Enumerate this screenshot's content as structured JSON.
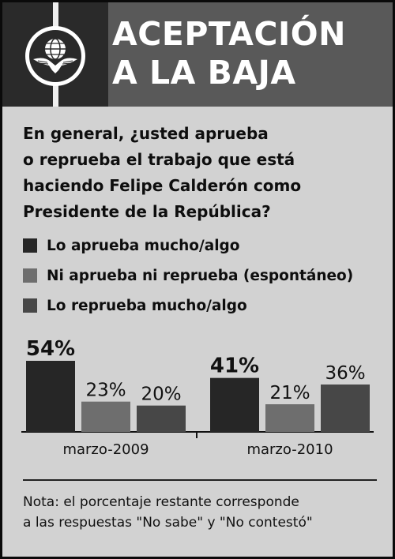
{
  "header": {
    "title_line1": "ACEPTACIÓN",
    "title_line2": "A LA BAJA"
  },
  "question_lines": [
    "En general, ¿usted aprueba",
    "o reprueba el trabajo que está",
    "haciendo Felipe Calderón como",
    "Presidente de la República?"
  ],
  "colors": {
    "header_dark": "#2a2a2a",
    "header_mid": "#595959",
    "background": "#d2d2d2"
  },
  "icons": {
    "emblem": "eagle-globe-emblem-icon"
  },
  "chart_data": {
    "type": "bar",
    "categories": [
      "marzo-2009",
      "marzo-2010"
    ],
    "series": [
      {
        "name": "Lo aprueba mucho/algo",
        "values": [
          54,
          41
        ],
        "color": "#262626",
        "labels": [
          "54%",
          "41%"
        ],
        "label_bold": true
      },
      {
        "name": "Ni aprueba ni reprueba (espontáneo)",
        "values": [
          23,
          21
        ],
        "color": "#6e6e6e",
        "labels": [
          "23%",
          "21%"
        ],
        "label_bold": false
      },
      {
        "name": "Lo reprueba mucho/algo",
        "values": [
          20,
          36
        ],
        "color": "#474747",
        "labels": [
          "20%",
          "36%"
        ],
        "label_bold": false
      }
    ],
    "ylim": [
      0,
      54
    ],
    "legend_position": "top",
    "grid": false
  },
  "note_lines": [
    "Nota: el porcentaje restante corresponde",
    "a las respuestas \"No sabe\" y \"No contestó\""
  ]
}
